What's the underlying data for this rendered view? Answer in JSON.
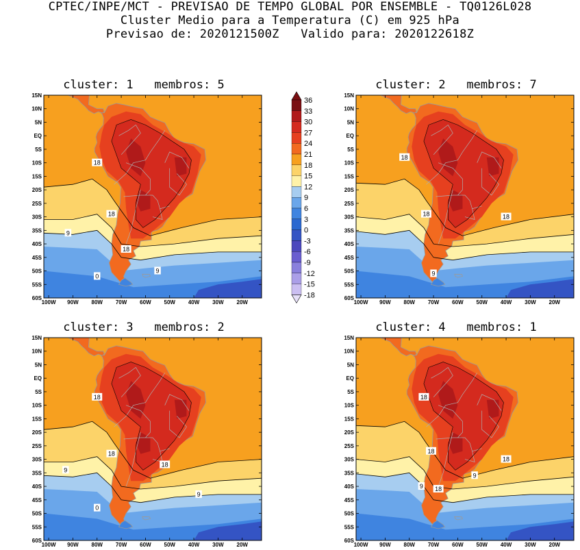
{
  "header": {
    "line1": "CPTEC/INPE/MCT - PREVISAO DE TEMPO GLOBAL POR ENSEMBLE - TQ0126L028",
    "line2": "Cluster Medio para a Temperatura (C) em 925 hPa",
    "line3": "Previsao de: 2020121500Z   Valido para: 2020122618Z"
  },
  "axes": {
    "lat_labels": [
      "15N",
      "10N",
      "5N",
      "EQ",
      "5S",
      "10S",
      "15S",
      "20S",
      "25S",
      "30S",
      "35S",
      "40S",
      "45S",
      "50S",
      "55S",
      "60S"
    ],
    "lon_labels": [
      "100W",
      "90W",
      "80W",
      "70W",
      "60W",
      "50W",
      "40W",
      "30W",
      "20W"
    ]
  },
  "colorbar": {
    "labels": [
      "36",
      "33",
      "30",
      "27",
      "24",
      "21",
      "18",
      "15",
      "12",
      "9",
      "6",
      "3",
      "0",
      "-3",
      "-6",
      "-9",
      "-12",
      "-15",
      "-18"
    ],
    "colors": [
      "#7a0f12",
      "#b01a1a",
      "#d42a1e",
      "#e6401f",
      "#f26a1f",
      "#f7a01f",
      "#fcd369",
      "#fff2a8",
      "#a7cdf0",
      "#6aa6ea",
      "#3f84e0",
      "#2a68d0",
      "#3454c4",
      "#4c48bd",
      "#6a5ed0",
      "#8a80dd",
      "#ab9fe8",
      "#cbbff2"
    ]
  },
  "panels": [
    {
      "title": "cluster: 1   membros: 5",
      "contour_labels": [
        {
          "text": "18",
          "lon": -80,
          "lat": -10
        },
        {
          "text": "18",
          "lon": -74,
          "lat": -29
        },
        {
          "text": "18",
          "lon": -68,
          "lat": -42
        },
        {
          "text": "9",
          "lon": -92,
          "lat": -36
        },
        {
          "text": "9",
          "lon": -55,
          "lat": -50
        },
        {
          "text": "0",
          "lon": -80,
          "lat": -52
        }
      ]
    },
    {
      "title": "cluster: 2   membros: 7",
      "contour_labels": [
        {
          "text": "18",
          "lon": -82,
          "lat": -8
        },
        {
          "text": "18",
          "lon": -73,
          "lat": -29
        },
        {
          "text": "18",
          "lon": -40,
          "lat": -30
        },
        {
          "text": "9",
          "lon": -70,
          "lat": -51
        }
      ]
    },
    {
      "title": "cluster: 3   membros: 2",
      "contour_labels": [
        {
          "text": "18",
          "lon": -80,
          "lat": -7
        },
        {
          "text": "18",
          "lon": -74,
          "lat": -28
        },
        {
          "text": "18",
          "lon": -52,
          "lat": -32
        },
        {
          "text": "9",
          "lon": -93,
          "lat": -34
        },
        {
          "text": "9",
          "lon": -38,
          "lat": -43
        },
        {
          "text": "0",
          "lon": -80,
          "lat": -48
        }
      ]
    },
    {
      "title": "cluster: 4   membros: 1",
      "contour_labels": [
        {
          "text": "18",
          "lon": -74,
          "lat": -7
        },
        {
          "text": "18",
          "lon": -71,
          "lat": -27
        },
        {
          "text": "18",
          "lon": -40,
          "lat": -30
        },
        {
          "text": "9",
          "lon": -53,
          "lat": -36
        },
        {
          "text": "9",
          "lon": -75,
          "lat": -40
        },
        {
          "text": "18",
          "lon": -68,
          "lat": -41
        }
      ]
    }
  ]
}
